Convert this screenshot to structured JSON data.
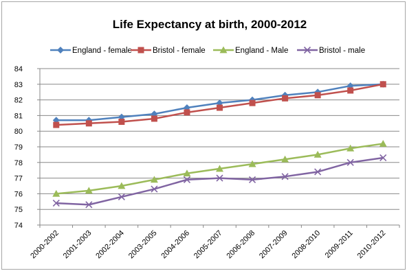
{
  "chart_data": {
    "type": "line",
    "title": "Life Expectancy at birth, 2000-2012",
    "categories": [
      "2000-2002",
      "2001-2003",
      "2002-2004",
      "2003-2005",
      "2004-2006",
      "2005-2007",
      "2006-2008",
      "2007-2009",
      "2008-2010",
      "2009-2011",
      "2010-2012"
    ],
    "ylim": [
      74,
      84
    ],
    "yticks": [
      "74",
      "75",
      "76",
      "77",
      "78",
      "79",
      "80",
      "81",
      "82",
      "83",
      "84"
    ],
    "grid": true,
    "legend_position": "top",
    "series": [
      {
        "name": "England - female",
        "color": "#4f81bd",
        "marker": "diamond",
        "values": [
          80.7,
          80.7,
          80.9,
          81.1,
          81.5,
          81.8,
          82.0,
          82.3,
          82.5,
          82.9,
          83.0
        ]
      },
      {
        "name": "Bristol - female",
        "color": "#c0504d",
        "marker": "square",
        "values": [
          80.4,
          80.5,
          80.6,
          80.8,
          81.2,
          81.5,
          81.8,
          82.1,
          82.3,
          82.6,
          83.0
        ]
      },
      {
        "name": "England - Male",
        "color": "#9bbb59",
        "marker": "triangle",
        "values": [
          76.0,
          76.2,
          76.5,
          76.9,
          77.3,
          77.6,
          77.9,
          78.2,
          78.5,
          78.9,
          79.2
        ]
      },
      {
        "name": "Bristol - male",
        "color": "#8064a2",
        "marker": "x",
        "values": [
          75.4,
          75.3,
          75.8,
          76.3,
          76.9,
          77.0,
          76.9,
          77.1,
          77.4,
          78.0,
          78.3
        ]
      }
    ]
  }
}
